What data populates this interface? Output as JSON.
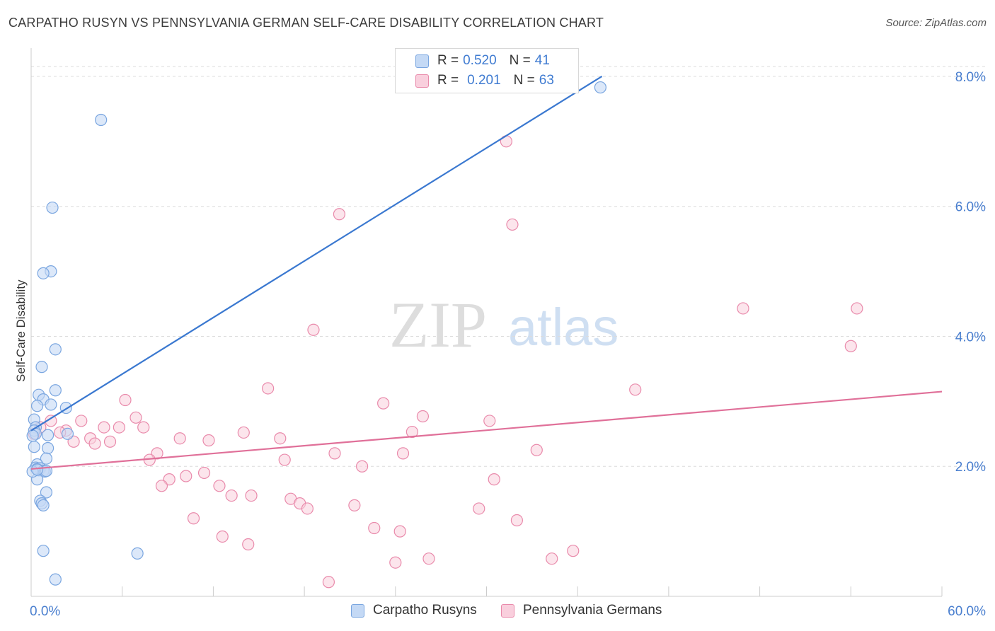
{
  "title": "CARPATHO RUSYN VS PENNSYLVANIA GERMAN SELF-CARE DISABILITY CORRELATION CHART",
  "source": "Source: ZipAtlas.com",
  "watermark": {
    "part1": "ZIP",
    "part2": "atlas"
  },
  "legend_stats": [
    {
      "r_label": "R =",
      "r_value": "0.520",
      "n_label": "N =",
      "n_value": "41"
    },
    {
      "r_label": "R =",
      "r_value": "0.201",
      "n_label": "N =",
      "n_value": "63"
    }
  ],
  "colors": {
    "blue_fill": "#c4d9f5",
    "blue_stroke": "#7aa6e0",
    "blue_line": "#3a78d0",
    "pink_fill": "#f9cfdd",
    "pink_stroke": "#e98aab",
    "pink_line": "#e07099",
    "axis_text": "#4a7fcf",
    "grid": "#dcdcdc"
  },
  "chart_data": {
    "type": "scatter",
    "title": "CARPATHO RUSYN VS PENNSYLVANIA GERMAN SELF-CARE DISABILITY CORRELATION CHART",
    "xlabel": "",
    "ylabel": "Self-Care Disability",
    "xlim": [
      0,
      60
    ],
    "ylim": [
      0,
      8.5
    ],
    "x_tick_labels": [
      "0.0%",
      "60.0%"
    ],
    "y_tick_labels": [
      "2.0%",
      "4.0%",
      "6.0%",
      "8.0%"
    ],
    "y_ticks": [
      2,
      4,
      6,
      8
    ],
    "grid": "horizontal dashed",
    "legend_position": "top-center and bottom",
    "series": [
      {
        "name": "Carpatho Rusyns",
        "r": 0.52,
        "n": 41,
        "trend": {
          "x": [
            0,
            37.6
          ],
          "y": [
            2.55,
            8.0
          ]
        },
        "points": [
          [
            4.6,
            7.33
          ],
          [
            37.5,
            7.83
          ],
          [
            1.4,
            5.98
          ],
          [
            1.3,
            5.0
          ],
          [
            0.8,
            4.97
          ],
          [
            1.6,
            3.8
          ],
          [
            0.7,
            3.53
          ],
          [
            1.6,
            3.17
          ],
          [
            0.5,
            3.1
          ],
          [
            0.8,
            3.03
          ],
          [
            1.3,
            2.95
          ],
          [
            0.4,
            2.93
          ],
          [
            2.3,
            2.9
          ],
          [
            0.2,
            2.72
          ],
          [
            0.3,
            2.6
          ],
          [
            0.2,
            2.55
          ],
          [
            0.3,
            2.5
          ],
          [
            1.1,
            2.48
          ],
          [
            2.4,
            2.5
          ],
          [
            0.1,
            2.47
          ],
          [
            0.2,
            2.3
          ],
          [
            1.1,
            2.28
          ],
          [
            1.0,
            2.12
          ],
          [
            0.4,
            2.03
          ],
          [
            0.3,
            1.98
          ],
          [
            0.4,
            1.96
          ],
          [
            0.6,
            1.97
          ],
          [
            0.5,
            1.94
          ],
          [
            0.8,
            1.93
          ],
          [
            0.9,
            1.92
          ],
          [
            1.0,
            1.93
          ],
          [
            0.4,
            1.8
          ],
          [
            1.0,
            1.6
          ],
          [
            0.6,
            1.47
          ],
          [
            0.7,
            1.43
          ],
          [
            0.8,
            1.4
          ],
          [
            0.8,
            0.7
          ],
          [
            7.0,
            0.66
          ],
          [
            1.6,
            0.26
          ],
          [
            0.1,
            1.92
          ],
          [
            0.4,
            1.95
          ]
        ]
      },
      {
        "name": "Pennsylvania Germans",
        "r": 0.201,
        "n": 63,
        "trend": {
          "x": [
            0,
            60
          ],
          "y": [
            1.96,
            3.15
          ]
        },
        "points": [
          [
            31.3,
            7.0
          ],
          [
            20.3,
            5.88
          ],
          [
            31.7,
            5.72
          ],
          [
            46.9,
            4.43
          ],
          [
            54.4,
            4.43
          ],
          [
            18.6,
            4.1
          ],
          [
            54.0,
            3.85
          ],
          [
            15.6,
            3.2
          ],
          [
            39.8,
            3.18
          ],
          [
            6.2,
            3.02
          ],
          [
            23.2,
            2.97
          ],
          [
            25.8,
            2.77
          ],
          [
            6.9,
            2.75
          ],
          [
            30.2,
            2.7
          ],
          [
            3.3,
            2.7
          ],
          [
            1.3,
            2.7
          ],
          [
            0.6,
            2.6
          ],
          [
            4.8,
            2.6
          ],
          [
            5.8,
            2.6
          ],
          [
            7.4,
            2.6
          ],
          [
            2.3,
            2.55
          ],
          [
            1.9,
            2.52
          ],
          [
            14.0,
            2.52
          ],
          [
            25.1,
            2.53
          ],
          [
            0.2,
            2.5
          ],
          [
            3.9,
            2.43
          ],
          [
            9.8,
            2.43
          ],
          [
            16.4,
            2.43
          ],
          [
            2.8,
            2.38
          ],
          [
            5.2,
            2.38
          ],
          [
            4.2,
            2.35
          ],
          [
            11.7,
            2.4
          ],
          [
            33.3,
            2.25
          ],
          [
            8.3,
            2.2
          ],
          [
            20.0,
            2.2
          ],
          [
            24.5,
            2.2
          ],
          [
            7.8,
            2.1
          ],
          [
            16.7,
            2.1
          ],
          [
            21.8,
            2.0
          ],
          [
            11.4,
            1.9
          ],
          [
            10.2,
            1.85
          ],
          [
            9.1,
            1.8
          ],
          [
            30.5,
            1.8
          ],
          [
            8.6,
            1.7
          ],
          [
            12.4,
            1.7
          ],
          [
            13.2,
            1.55
          ],
          [
            14.5,
            1.55
          ],
          [
            17.1,
            1.5
          ],
          [
            17.7,
            1.43
          ],
          [
            18.2,
            1.35
          ],
          [
            21.3,
            1.4
          ],
          [
            29.5,
            1.35
          ],
          [
            10.7,
            1.2
          ],
          [
            32.0,
            1.17
          ],
          [
            22.6,
            1.05
          ],
          [
            24.3,
            1.0
          ],
          [
            12.6,
            0.92
          ],
          [
            14.3,
            0.8
          ],
          [
            35.7,
            0.7
          ],
          [
            26.2,
            0.58
          ],
          [
            34.3,
            0.58
          ],
          [
            24.0,
            0.52
          ],
          [
            19.6,
            0.22
          ]
        ]
      }
    ]
  }
}
